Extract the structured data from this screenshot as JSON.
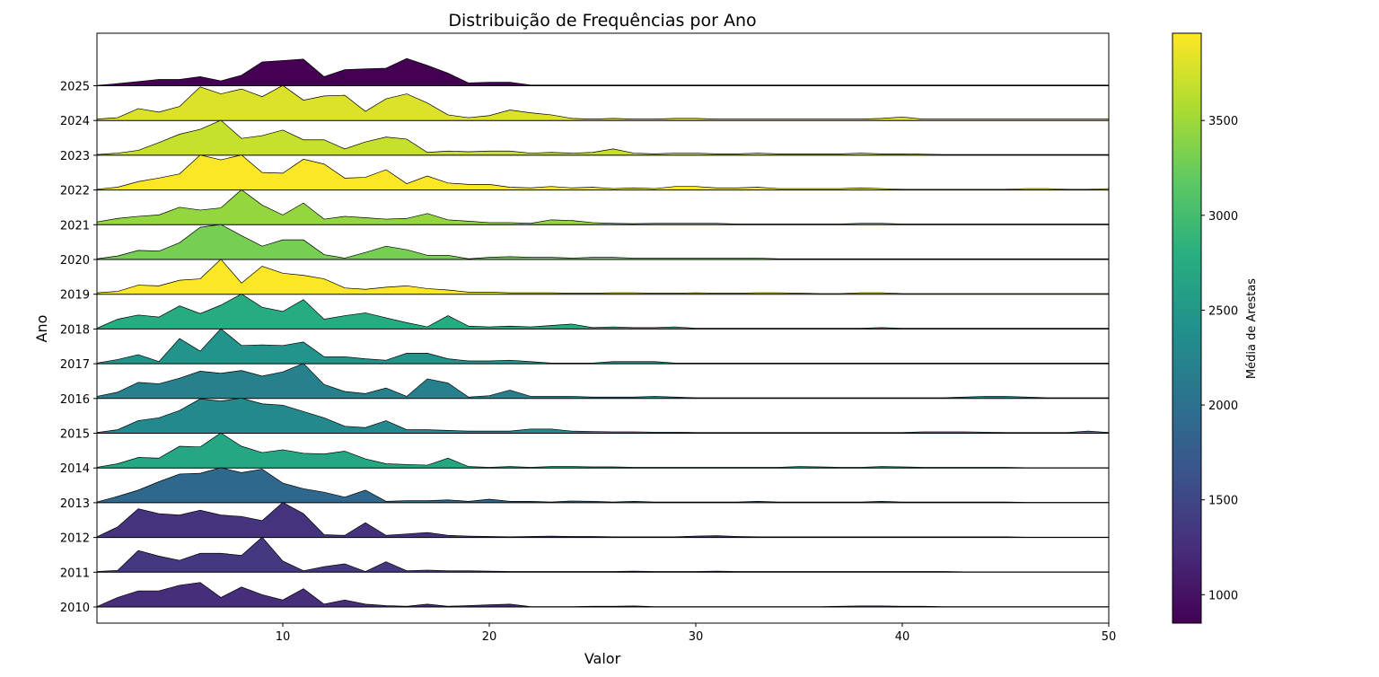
{
  "chart_data": {
    "type": "ridgeline",
    "title": "Distribuição de Frequências por Ano",
    "xlabel": "Valor",
    "ylabel": "Ano",
    "xlim": [
      1,
      50
    ],
    "xticks": [
      10,
      20,
      30,
      40,
      50
    ],
    "x": [
      1,
      2,
      3,
      4,
      5,
      6,
      7,
      8,
      9,
      10,
      11,
      12,
      13,
      14,
      15,
      16,
      17,
      18,
      19,
      20,
      21,
      22,
      23,
      24,
      25,
      26,
      27,
      28,
      29,
      30,
      31,
      32,
      33,
      34,
      35,
      36,
      37,
      38,
      39,
      40,
      41,
      42,
      43,
      44,
      45,
      46,
      47,
      48,
      49,
      50
    ],
    "colorbar": {
      "label": "Média de Arestas",
      "range": [
        850,
        3960
      ],
      "ticks": [
        1000,
        1500,
        2000,
        2500,
        3000,
        3500
      ],
      "colormap": "viridis"
    },
    "series": [
      {
        "name": "2010",
        "mean_edges": 1250,
        "values": [
          0.01,
          0.27,
          0.46,
          0.46,
          0.62,
          0.7,
          0.27,
          0.57,
          0.35,
          0.2,
          0.52,
          0.08,
          0.2,
          0.08,
          0.04,
          0.02,
          0.08,
          0.02,
          0.04,
          0.06,
          0.08,
          0.01,
          0.01,
          0.01,
          0.02,
          0.02,
          0.03,
          0.01,
          0.01,
          0.01,
          0.01,
          0.01,
          0.01,
          0.01,
          0.01,
          0.01,
          0.02,
          0.03,
          0.03,
          0.02,
          0.02,
          0.01,
          0.01,
          0.01,
          0.01,
          0.01,
          0.01,
          0.01,
          0.01,
          0.01
        ]
      },
      {
        "name": "2011",
        "mean_edges": 1350,
        "values": [
          0.02,
          0.05,
          0.62,
          0.46,
          0.34,
          0.54,
          0.54,
          0.48,
          1.0,
          0.32,
          0.04,
          0.16,
          0.24,
          0.02,
          0.3,
          0.04,
          0.06,
          0.04,
          0.04,
          0.03,
          0.02,
          0.02,
          0.02,
          0.02,
          0.02,
          0.02,
          0.03,
          0.02,
          0.02,
          0.02,
          0.03,
          0.02,
          0.02,
          0.02,
          0.02,
          0.02,
          0.02,
          0.02,
          0.02,
          0.02,
          0.02,
          0.02,
          0.01,
          0.01,
          0.01,
          0.01,
          0.01,
          0.01,
          0.01,
          0.01
        ]
      },
      {
        "name": "2012",
        "mean_edges": 1300,
        "values": [
          0.02,
          0.3,
          0.82,
          0.68,
          0.64,
          0.78,
          0.64,
          0.6,
          0.48,
          1.0,
          0.68,
          0.08,
          0.06,
          0.42,
          0.06,
          0.1,
          0.14,
          0.06,
          0.04,
          0.03,
          0.02,
          0.03,
          0.04,
          0.03,
          0.03,
          0.02,
          0.02,
          0.02,
          0.02,
          0.04,
          0.05,
          0.03,
          0.02,
          0.02,
          0.02,
          0.02,
          0.02,
          0.02,
          0.02,
          0.02,
          0.02,
          0.02,
          0.02,
          0.02,
          0.02,
          0.01,
          0.01,
          0.01,
          0.01,
          0.01
        ]
      },
      {
        "name": "2013",
        "mean_edges": 1900,
        "values": [
          0.02,
          0.18,
          0.36,
          0.6,
          0.82,
          0.84,
          1.0,
          0.86,
          0.96,
          0.56,
          0.4,
          0.3,
          0.16,
          0.36,
          0.04,
          0.06,
          0.06,
          0.08,
          0.04,
          0.1,
          0.04,
          0.04,
          0.02,
          0.05,
          0.04,
          0.02,
          0.04,
          0.02,
          0.02,
          0.02,
          0.02,
          0.02,
          0.04,
          0.02,
          0.02,
          0.02,
          0.02,
          0.02,
          0.04,
          0.02,
          0.02,
          0.02,
          0.02,
          0.02,
          0.02,
          0.01,
          0.01,
          0.01,
          0.01,
          0.01
        ]
      },
      {
        "name": "2014",
        "mean_edges": 2700,
        "values": [
          0.02,
          0.12,
          0.3,
          0.28,
          0.62,
          0.6,
          1.0,
          0.62,
          0.44,
          0.52,
          0.42,
          0.4,
          0.48,
          0.26,
          0.12,
          0.1,
          0.08,
          0.28,
          0.04,
          0.02,
          0.04,
          0.02,
          0.04,
          0.04,
          0.03,
          0.03,
          0.02,
          0.02,
          0.02,
          0.02,
          0.02,
          0.02,
          0.02,
          0.02,
          0.04,
          0.03,
          0.02,
          0.02,
          0.04,
          0.03,
          0.02,
          0.02,
          0.02,
          0.02,
          0.02,
          0.01,
          0.01,
          0.01,
          0.01,
          0.01
        ]
      },
      {
        "name": "2015",
        "mean_edges": 2300,
        "values": [
          0.02,
          0.1,
          0.36,
          0.44,
          0.65,
          0.98,
          0.92,
          1.0,
          0.84,
          0.8,
          0.62,
          0.44,
          0.2,
          0.16,
          0.36,
          0.1,
          0.1,
          0.08,
          0.06,
          0.06,
          0.06,
          0.12,
          0.12,
          0.06,
          0.05,
          0.04,
          0.04,
          0.03,
          0.03,
          0.02,
          0.02,
          0.02,
          0.02,
          0.02,
          0.02,
          0.02,
          0.02,
          0.02,
          0.02,
          0.02,
          0.04,
          0.04,
          0.04,
          0.03,
          0.02,
          0.02,
          0.02,
          0.02,
          0.06,
          0.02
        ]
      },
      {
        "name": "2016",
        "mean_edges": 2200,
        "values": [
          0.06,
          0.18,
          0.46,
          0.42,
          0.58,
          0.78,
          0.72,
          0.8,
          0.64,
          0.76,
          1.0,
          0.4,
          0.2,
          0.14,
          0.3,
          0.06,
          0.56,
          0.44,
          0.04,
          0.08,
          0.24,
          0.06,
          0.06,
          0.06,
          0.04,
          0.04,
          0.04,
          0.06,
          0.04,
          0.02,
          0.02,
          0.02,
          0.02,
          0.02,
          0.02,
          0.02,
          0.02,
          0.02,
          0.02,
          0.02,
          0.02,
          0.02,
          0.04,
          0.06,
          0.06,
          0.04,
          0.02,
          0.02,
          0.02,
          0.02
        ]
      },
      {
        "name": "2017",
        "mean_edges": 2450,
        "values": [
          0.02,
          0.12,
          0.26,
          0.06,
          0.72,
          0.36,
          1.0,
          0.52,
          0.54,
          0.52,
          0.62,
          0.2,
          0.2,
          0.14,
          0.1,
          0.3,
          0.3,
          0.14,
          0.08,
          0.08,
          0.1,
          0.06,
          0.02,
          0.02,
          0.02,
          0.06,
          0.06,
          0.06,
          0.02,
          0.02,
          0.02,
          0.02,
          0.02,
          0.02,
          0.02,
          0.02,
          0.02,
          0.02,
          0.02,
          0.02,
          0.02,
          0.02,
          0.02,
          0.02,
          0.02,
          0.02,
          0.02,
          0.02,
          0.02,
          0.02
        ]
      },
      {
        "name": "2018",
        "mean_edges": 2750,
        "values": [
          0.02,
          0.28,
          0.4,
          0.34,
          0.66,
          0.44,
          0.68,
          1.0,
          0.62,
          0.5,
          0.84,
          0.28,
          0.38,
          0.46,
          0.32,
          0.18,
          0.06,
          0.38,
          0.08,
          0.06,
          0.08,
          0.06,
          0.1,
          0.14,
          0.04,
          0.06,
          0.04,
          0.04,
          0.06,
          0.02,
          0.02,
          0.02,
          0.02,
          0.02,
          0.02,
          0.02,
          0.02,
          0.02,
          0.04,
          0.02,
          0.02,
          0.02,
          0.02,
          0.02,
          0.02,
          0.02,
          0.02,
          0.02,
          0.02,
          0.02
        ]
      },
      {
        "name": "2019",
        "mean_edges": 3950,
        "values": [
          0.04,
          0.08,
          0.26,
          0.24,
          0.4,
          0.44,
          1.0,
          0.32,
          0.8,
          0.6,
          0.54,
          0.44,
          0.18,
          0.14,
          0.2,
          0.24,
          0.16,
          0.12,
          0.06,
          0.06,
          0.04,
          0.04,
          0.04,
          0.03,
          0.03,
          0.04,
          0.04,
          0.03,
          0.03,
          0.04,
          0.03,
          0.03,
          0.04,
          0.04,
          0.03,
          0.02,
          0.02,
          0.04,
          0.04,
          0.02,
          0.02,
          0.02,
          0.02,
          0.02,
          0.02,
          0.02,
          0.02,
          0.02,
          0.02,
          0.02
        ]
      },
      {
        "name": "2020",
        "mean_edges": 3300,
        "values": [
          0.02,
          0.1,
          0.26,
          0.24,
          0.48,
          0.92,
          1.0,
          0.68,
          0.38,
          0.56,
          0.56,
          0.14,
          0.04,
          0.2,
          0.38,
          0.28,
          0.12,
          0.12,
          0.02,
          0.06,
          0.08,
          0.06,
          0.06,
          0.04,
          0.06,
          0.06,
          0.04,
          0.04,
          0.04,
          0.04,
          0.04,
          0.04,
          0.04,
          0.02,
          0.02,
          0.02,
          0.02,
          0.02,
          0.02,
          0.02,
          0.02,
          0.02,
          0.02,
          0.02,
          0.02,
          0.02,
          0.02,
          0.02,
          0.02,
          0.02
        ]
      },
      {
        "name": "2021",
        "mean_edges": 3450,
        "values": [
          0.08,
          0.18,
          0.24,
          0.28,
          0.5,
          0.42,
          0.48,
          1.0,
          0.56,
          0.28,
          0.62,
          0.16,
          0.24,
          0.2,
          0.16,
          0.18,
          0.32,
          0.14,
          0.1,
          0.06,
          0.06,
          0.04,
          0.14,
          0.12,
          0.06,
          0.04,
          0.03,
          0.04,
          0.04,
          0.04,
          0.04,
          0.02,
          0.02,
          0.02,
          0.02,
          0.02,
          0.02,
          0.04,
          0.04,
          0.02,
          0.02,
          0.02,
          0.02,
          0.02,
          0.02,
          0.02,
          0.02,
          0.02,
          0.02,
          0.02
        ]
      },
      {
        "name": "2022",
        "mean_edges": 3950,
        "values": [
          0.02,
          0.08,
          0.24,
          0.34,
          0.46,
          1.0,
          0.86,
          1.0,
          0.5,
          0.48,
          0.88,
          0.74,
          0.34,
          0.36,
          0.58,
          0.18,
          0.4,
          0.2,
          0.16,
          0.16,
          0.08,
          0.06,
          0.1,
          0.06,
          0.08,
          0.04,
          0.06,
          0.04,
          0.1,
          0.1,
          0.06,
          0.06,
          0.08,
          0.04,
          0.04,
          0.04,
          0.04,
          0.06,
          0.04,
          0.02,
          0.02,
          0.02,
          0.02,
          0.02,
          0.02,
          0.04,
          0.04,
          0.02,
          0.02,
          0.04
        ]
      },
      {
        "name": "2023",
        "mean_edges": 3700,
        "values": [
          0.02,
          0.06,
          0.14,
          0.36,
          0.6,
          0.74,
          1.0,
          0.48,
          0.56,
          0.72,
          0.44,
          0.44,
          0.18,
          0.38,
          0.52,
          0.46,
          0.08,
          0.12,
          0.1,
          0.12,
          0.12,
          0.06,
          0.08,
          0.06,
          0.08,
          0.18,
          0.06,
          0.04,
          0.06,
          0.06,
          0.04,
          0.04,
          0.06,
          0.04,
          0.04,
          0.04,
          0.04,
          0.06,
          0.04,
          0.04,
          0.03,
          0.02,
          0.02,
          0.02,
          0.02,
          0.02,
          0.02,
          0.02,
          0.02,
          0.02
        ]
      },
      {
        "name": "2024",
        "mean_edges": 3800,
        "values": [
          0.04,
          0.08,
          0.34,
          0.24,
          0.4,
          0.96,
          0.76,
          0.9,
          0.68,
          1.0,
          0.58,
          0.7,
          0.72,
          0.26,
          0.62,
          0.76,
          0.5,
          0.16,
          0.08,
          0.14,
          0.3,
          0.22,
          0.16,
          0.06,
          0.04,
          0.06,
          0.04,
          0.04,
          0.06,
          0.06,
          0.04,
          0.04,
          0.04,
          0.04,
          0.04,
          0.04,
          0.04,
          0.04,
          0.06,
          0.1,
          0.04,
          0.04,
          0.04,
          0.04,
          0.04,
          0.04,
          0.04,
          0.04,
          0.04,
          0.04
        ]
      },
      {
        "name": "2025",
        "mean_edges": 850,
        "values": [
          0.01,
          0.06,
          0.12,
          0.18,
          0.18,
          0.26,
          0.14,
          0.3,
          0.68,
          0.72,
          0.76,
          0.26,
          0.46,
          0.48,
          0.5,
          0.78,
          0.58,
          0.36,
          0.08,
          0.1,
          0.1,
          0.02,
          0.02,
          0.02,
          0.02,
          0.02,
          0.02,
          0.02,
          0.02,
          0.02,
          0.02,
          0.02,
          0.02,
          0.02,
          0.02,
          0.02,
          0.02,
          0.02,
          0.02,
          0.02,
          0.02,
          0.02,
          0.02,
          0.02,
          0.02,
          0.02,
          0.02,
          0.02,
          0.02,
          0.02
        ]
      }
    ]
  }
}
